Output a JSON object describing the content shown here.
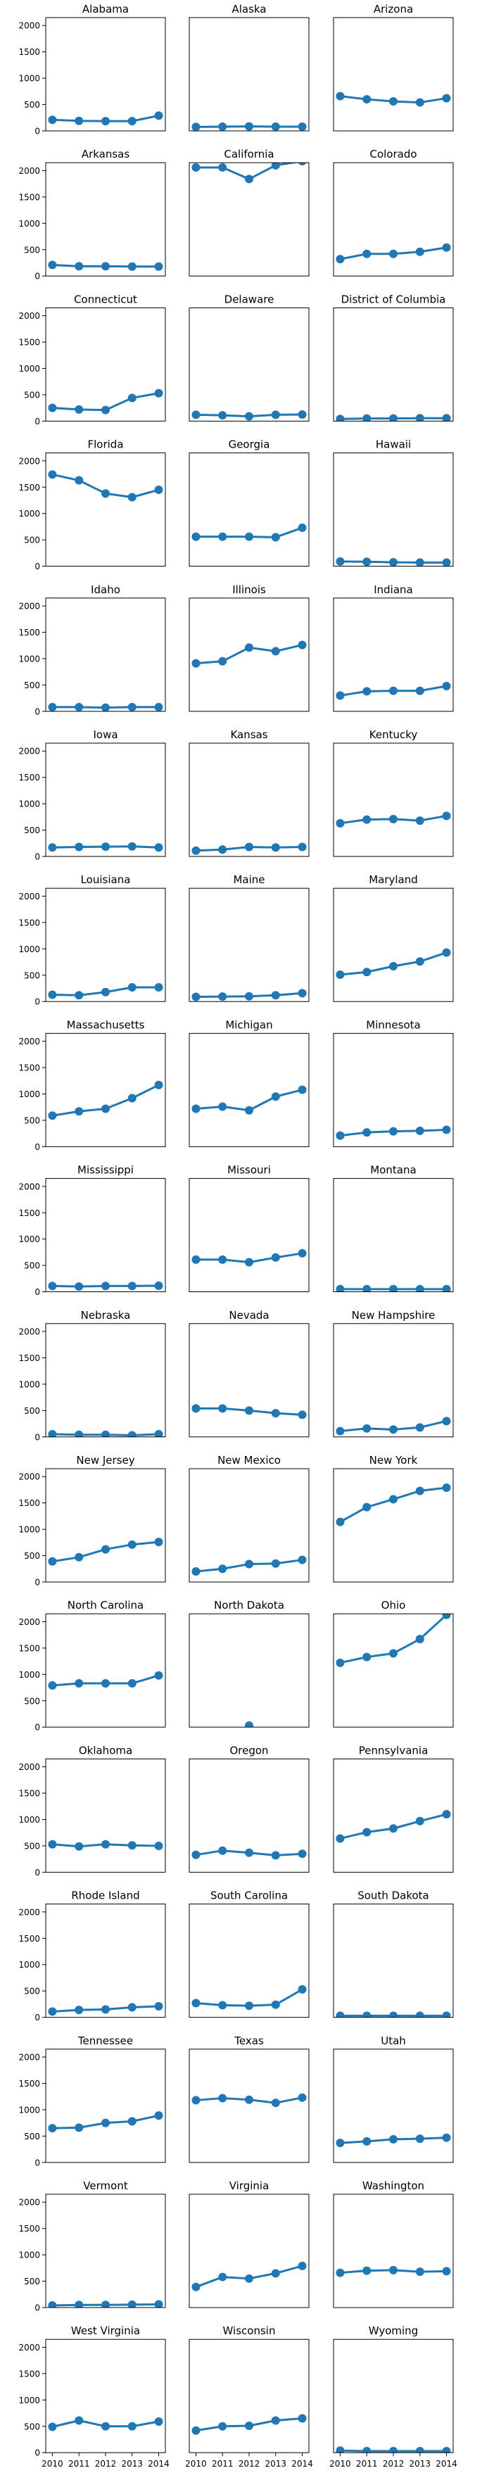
{
  "chart_data": {
    "type": "line",
    "layout": "small-multiples",
    "ylim": [
      0,
      2150
    ],
    "yticks": [
      0,
      500,
      1000,
      1500,
      2000
    ],
    "xticks": [
      2010,
      2011,
      2012,
      2013,
      2014
    ],
    "xlim": [
      2009.75,
      2014.25
    ],
    "line_color": "#1f77b4",
    "grid": false,
    "legend": "none",
    "panels": [
      {
        "title": "Alabama",
        "x": [
          2010,
          2011,
          2012,
          2013,
          2014
        ],
        "y": [
          210,
          190,
          185,
          185,
          290
        ]
      },
      {
        "title": "Alaska",
        "x": [
          2010,
          2011,
          2012,
          2013,
          2014
        ],
        "y": [
          75,
          80,
          85,
          80,
          80
        ]
      },
      {
        "title": "Arizona",
        "x": [
          2010,
          2011,
          2012,
          2013,
          2014
        ],
        "y": [
          660,
          600,
          560,
          540,
          620
        ]
      },
      {
        "title": "Arkansas",
        "x": [
          2010,
          2011,
          2012,
          2013,
          2014
        ],
        "y": [
          210,
          185,
          185,
          180,
          180
        ]
      },
      {
        "title": "California",
        "x": [
          2010,
          2011,
          2012,
          2013,
          2014
        ],
        "y": [
          2060,
          2060,
          1840,
          2100,
          2180
        ]
      },
      {
        "title": "Colorado",
        "x": [
          2010,
          2011,
          2012,
          2013,
          2014
        ],
        "y": [
          320,
          420,
          420,
          460,
          540
        ]
      },
      {
        "title": "Connecticut",
        "x": [
          2010,
          2011,
          2012,
          2013,
          2014
        ],
        "y": [
          250,
          220,
          210,
          440,
          530
        ]
      },
      {
        "title": "Delaware",
        "x": [
          2010,
          2011,
          2012,
          2013,
          2014
        ],
        "y": [
          120,
          110,
          90,
          120,
          125
        ]
      },
      {
        "title": "District of Columbia",
        "x": [
          2010,
          2011,
          2012,
          2013,
          2014
        ],
        "y": [
          40,
          50,
          50,
          55,
          55
        ]
      },
      {
        "title": "Florida",
        "x": [
          2010,
          2011,
          2012,
          2013,
          2014
        ],
        "y": [
          1740,
          1630,
          1380,
          1310,
          1450
        ]
      },
      {
        "title": "Georgia",
        "x": [
          2010,
          2011,
          2012,
          2013,
          2014
        ],
        "y": [
          560,
          560,
          560,
          550,
          730
        ]
      },
      {
        "title": "Hawaii",
        "x": [
          2010,
          2011,
          2012,
          2013,
          2014
        ],
        "y": [
          90,
          85,
          75,
          70,
          70
        ]
      },
      {
        "title": "Idaho",
        "x": [
          2010,
          2011,
          2012,
          2013,
          2014
        ],
        "y": [
          80,
          80,
          70,
          80,
          80
        ]
      },
      {
        "title": "Illinois",
        "x": [
          2010,
          2011,
          2012,
          2013,
          2014
        ],
        "y": [
          910,
          950,
          1210,
          1140,
          1260
        ]
      },
      {
        "title": "Indiana",
        "x": [
          2010,
          2011,
          2012,
          2013,
          2014
        ],
        "y": [
          300,
          380,
          390,
          390,
          480
        ]
      },
      {
        "title": "Iowa",
        "x": [
          2010,
          2011,
          2012,
          2013,
          2014
        ],
        "y": [
          170,
          180,
          185,
          190,
          170
        ]
      },
      {
        "title": "Kansas",
        "x": [
          2010,
          2011,
          2012,
          2013,
          2014
        ],
        "y": [
          110,
          130,
          180,
          170,
          180
        ]
      },
      {
        "title": "Kentucky",
        "x": [
          2010,
          2011,
          2012,
          2013,
          2014
        ],
        "y": [
          630,
          700,
          710,
          680,
          770
        ]
      },
      {
        "title": "Louisiana",
        "x": [
          2010,
          2011,
          2012,
          2013,
          2014
        ],
        "y": [
          130,
          120,
          180,
          270,
          270
        ]
      },
      {
        "title": "Maine",
        "x": [
          2010,
          2011,
          2012,
          2013,
          2014
        ],
        "y": [
          90,
          95,
          100,
          120,
          160
        ]
      },
      {
        "title": "Maryland",
        "x": [
          2010,
          2011,
          2012,
          2013,
          2014
        ],
        "y": [
          510,
          560,
          670,
          760,
          930
        ]
      },
      {
        "title": "Massachusetts",
        "x": [
          2010,
          2011,
          2012,
          2013,
          2014
        ],
        "y": [
          590,
          670,
          720,
          920,
          1170
        ]
      },
      {
        "title": "Michigan",
        "x": [
          2010,
          2011,
          2012,
          2013,
          2014
        ],
        "y": [
          720,
          760,
          690,
          950,
          1080
        ]
      },
      {
        "title": "Minnesota",
        "x": [
          2010,
          2011,
          2012,
          2013,
          2014
        ],
        "y": [
          210,
          270,
          290,
          300,
          320
        ]
      },
      {
        "title": "Mississippi",
        "x": [
          2010,
          2011,
          2012,
          2013,
          2014
        ],
        "y": [
          110,
          100,
          110,
          110,
          115
        ]
      },
      {
        "title": "Missouri",
        "x": [
          2010,
          2011,
          2012,
          2013,
          2014
        ],
        "y": [
          610,
          610,
          560,
          650,
          730
        ]
      },
      {
        "title": "Montana",
        "x": [
          2010,
          2011,
          2012,
          2013,
          2014
        ],
        "y": [
          50,
          50,
          50,
          50,
          50
        ]
      },
      {
        "title": "Nebraska",
        "x": [
          2010,
          2011,
          2012,
          2013,
          2014
        ],
        "y": [
          50,
          40,
          40,
          30,
          50
        ]
      },
      {
        "title": "Nevada",
        "x": [
          2010,
          2011,
          2012,
          2013,
          2014
        ],
        "y": [
          540,
          540,
          500,
          450,
          420
        ]
      },
      {
        "title": "New Hampshire",
        "x": [
          2010,
          2011,
          2012,
          2013,
          2014
        ],
        "y": [
          110,
          160,
          140,
          180,
          300
        ]
      },
      {
        "title": "New Jersey",
        "x": [
          2010,
          2011,
          2012,
          2013,
          2014
        ],
        "y": [
          390,
          470,
          620,
          710,
          760
        ]
      },
      {
        "title": "New Mexico",
        "x": [
          2010,
          2011,
          2012,
          2013,
          2014
        ],
        "y": [
          200,
          250,
          340,
          350,
          420
        ]
      },
      {
        "title": "New York",
        "x": [
          2010,
          2011,
          2012,
          2013,
          2014
        ],
        "y": [
          1140,
          1420,
          1570,
          1730,
          1790
        ]
      },
      {
        "title": "North Carolina",
        "x": [
          2010,
          2011,
          2012,
          2013,
          2014
        ],
        "y": [
          790,
          830,
          830,
          830,
          980
        ]
      },
      {
        "title": "North Dakota",
        "x": [
          2010,
          2011,
          2012,
          2013,
          2014
        ],
        "y": [
          null,
          null,
          30,
          null,
          null
        ]
      },
      {
        "title": "Ohio",
        "x": [
          2010,
          2011,
          2012,
          2013,
          2014
        ],
        "y": [
          1220,
          1330,
          1400,
          1670,
          2130
        ]
      },
      {
        "title": "Oklahoma",
        "x": [
          2010,
          2011,
          2012,
          2013,
          2014
        ],
        "y": [
          530,
          490,
          530,
          510,
          500
        ]
      },
      {
        "title": "Oregon",
        "x": [
          2010,
          2011,
          2012,
          2013,
          2014
        ],
        "y": [
          330,
          410,
          370,
          320,
          350
        ]
      },
      {
        "title": "Pennsylvania",
        "x": [
          2010,
          2011,
          2012,
          2013,
          2014
        ],
        "y": [
          640,
          760,
          830,
          970,
          1100
        ]
      },
      {
        "title": "Rhode Island",
        "x": [
          2010,
          2011,
          2012,
          2013,
          2014
        ],
        "y": [
          110,
          140,
          150,
          190,
          210
        ]
      },
      {
        "title": "South Carolina",
        "x": [
          2010,
          2011,
          2012,
          2013,
          2014
        ],
        "y": [
          270,
          230,
          220,
          240,
          530
        ]
      },
      {
        "title": "South Dakota",
        "x": [
          2010,
          2011,
          2012,
          2013,
          2014
        ],
        "y": [
          30,
          30,
          30,
          30,
          30
        ]
      },
      {
        "title": "Tennessee",
        "x": [
          2010,
          2011,
          2012,
          2013,
          2014
        ],
        "y": [
          650,
          660,
          750,
          780,
          890
        ]
      },
      {
        "title": "Texas",
        "x": [
          2010,
          2011,
          2012,
          2013,
          2014
        ],
        "y": [
          1180,
          1220,
          1190,
          1130,
          1230
        ]
      },
      {
        "title": "Utah",
        "x": [
          2010,
          2011,
          2012,
          2013,
          2014
        ],
        "y": [
          370,
          400,
          440,
          450,
          470
        ]
      },
      {
        "title": "Vermont",
        "x": [
          2010,
          2011,
          2012,
          2013,
          2014
        ],
        "y": [
          40,
          50,
          50,
          55,
          60
        ]
      },
      {
        "title": "Virginia",
        "x": [
          2010,
          2011,
          2012,
          2013,
          2014
        ],
        "y": [
          390,
          580,
          550,
          650,
          790
        ]
      },
      {
        "title": "Washington",
        "x": [
          2010,
          2011,
          2012,
          2013,
          2014
        ],
        "y": [
          660,
          700,
          710,
          680,
          690
        ]
      },
      {
        "title": "West Virginia",
        "x": [
          2010,
          2011,
          2012,
          2013,
          2014
        ],
        "y": [
          490,
          610,
          500,
          500,
          590
        ]
      },
      {
        "title": "Wisconsin",
        "x": [
          2010,
          2011,
          2012,
          2013,
          2014
        ],
        "y": [
          420,
          500,
          510,
          610,
          650
        ]
      },
      {
        "title": "Wyoming",
        "x": [
          2010,
          2011,
          2012,
          2013,
          2014
        ],
        "y": [
          40,
          30,
          30,
          30,
          30
        ]
      }
    ]
  }
}
